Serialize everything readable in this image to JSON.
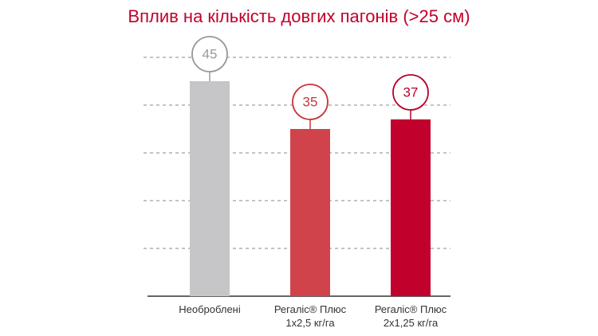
{
  "chart_data": {
    "type": "bar",
    "title": "Вплив на кількість довгих пагонів (>25 см)",
    "categories": [
      "Необроблені",
      "Регаліс® Плюс\n1х2,5 кг/га",
      "Регаліс® Плюс\n2х1,25 кг/га"
    ],
    "values": [
      45,
      35,
      37
    ],
    "colors": [
      "#c6c6c8",
      "#d0434a",
      "#c1002b"
    ],
    "label_colors": [
      "#9a9a9a",
      "#c8353d",
      "#b8002a"
    ],
    "ylim": [
      0,
      50
    ],
    "yticks": [
      10,
      20,
      30,
      40,
      50
    ],
    "grid": true
  }
}
